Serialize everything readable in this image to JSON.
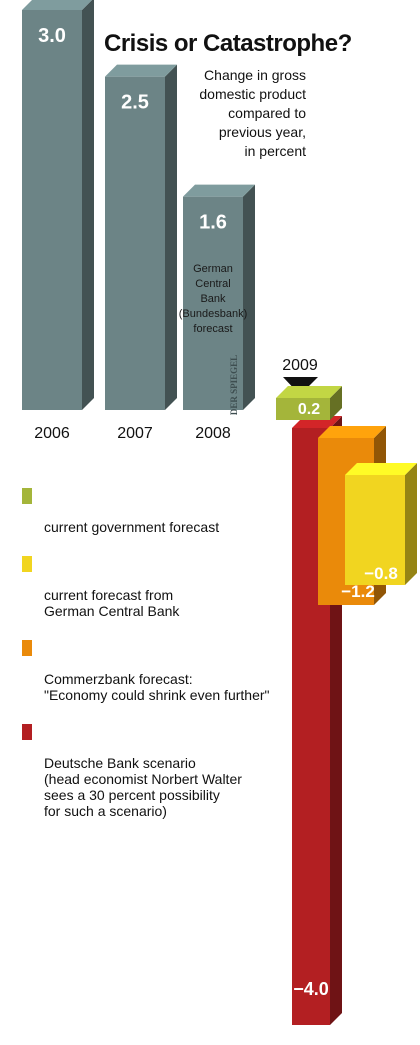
{
  "chart_data": {
    "type": "bar",
    "title": "Crisis or Catastrophe?",
    "subtitle": "Change in gross domestic product compared to previous year, in percent",
    "categories": [
      "2006",
      "2007",
      "2008"
    ],
    "values": [
      3.0,
      2.5,
      1.6
    ],
    "value_labels": [
      "3.0",
      "2.5",
      "1.6"
    ],
    "annotations": [
      "German Central Bank (Bundesbank) forecast",
      "DER SPIEGEL"
    ],
    "forecast_year": "2009",
    "scenarios": [
      {
        "name": "Deutsche Bank scenario (head economist Norbert Walter sees a 30 percent possibility for such a scenario)",
        "value": -4.0,
        "label": "−4.0",
        "color": "#b31f22"
      },
      {
        "name": "Commerzbank forecast: \"Economy could shrink even further\"",
        "value": -1.2,
        "label": "−1.2",
        "color": "#ea8a0a"
      },
      {
        "name": "current forecast from German Central Bank",
        "value": -0.8,
        "label": "−0.8",
        "color": "#f1d520"
      },
      {
        "name": "current government forecast",
        "value": 0.2,
        "label": "0.2",
        "color": "#a4b53a"
      }
    ],
    "bar_color": "#6c8486",
    "ylim": [
      -4.0,
      3.0
    ]
  },
  "title": "Crisis or Catastrophe?",
  "subtitle": "Change in gross\ndomestic product\ncompared to\nprevious year,\nin percent",
  "legend": [
    {
      "label": "current government forecast",
      "color": "#a4b53a"
    },
    {
      "label": "current forecast from\nGerman Central Bank",
      "color": "#f1d520"
    },
    {
      "label": "Commerzbank forecast:\n\"Economy could shrink even further\"",
      "color": "#ea8a0a"
    },
    {
      "label": "Deutsche Bank scenario\n(head economist Norbert Walter\nsees a 30 percent possibility\nfor such a scenario)",
      "color": "#b31f22"
    }
  ]
}
